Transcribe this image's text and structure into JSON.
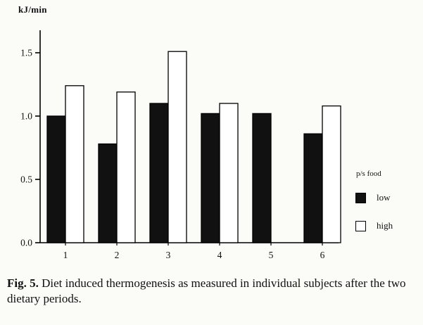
{
  "figure": {
    "caption_label": "Fig. 5.",
    "caption_text": "Diet induced thermogenesis as measured in individual subjects after the two dietary periods."
  },
  "chart_data": {
    "type": "bar",
    "title": "",
    "ylabel": "kJ/min",
    "xlabel": "",
    "categories": [
      "1",
      "2",
      "3",
      "4",
      "5",
      "6"
    ],
    "series": [
      {
        "name": "low",
        "color": "#111111",
        "values": [
          1.0,
          0.78,
          1.1,
          1.02,
          1.02,
          0.86
        ]
      },
      {
        "name": "high",
        "color": "#ffffff",
        "values": [
          1.24,
          1.19,
          1.51,
          1.1,
          null,
          1.08
        ]
      }
    ],
    "ylim": [
      0,
      1.65
    ],
    "yticks": [
      {
        "v": 0,
        "label": "0.0"
      },
      {
        "v": 0.5,
        "label": "0.5"
      },
      {
        "v": 1.0,
        "label": "1.0"
      },
      {
        "v": 1.5,
        "label": "1.5"
      }
    ],
    "legend_title": "p/s food",
    "legend_position": "right",
    "grid": false
  }
}
